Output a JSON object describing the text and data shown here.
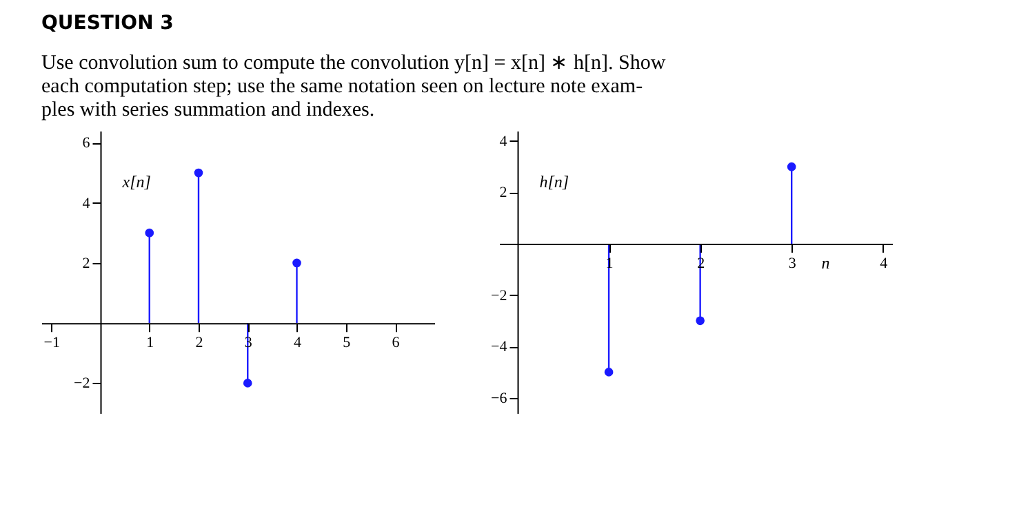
{
  "chart_data": [
    {
      "type": "lollipop",
      "title": "QUESTION 3",
      "subtitle": [
        "Use convolution sum to compute the convolution y[n] = x[n] ∗ h[n]. Show",
        "each computation step; use the same notation seen on lecture note exam-",
        "ples with series summation and indexes."
      ],
      "ylabel": "x[n]",
      "x": [
        1,
        2,
        3,
        4
      ],
      "values": [
        3,
        5,
        -2,
        2
      ],
      "color": "#1a1aff",
      "marker": "circle",
      "xlim": [
        -1.2,
        6.8
      ],
      "ylim": [
        -3,
        6.4
      ],
      "xticks": [
        -1,
        1,
        2,
        3,
        4,
        5,
        6
      ],
      "yticks": [
        -2,
        2,
        4,
        6
      ],
      "grid": false
    },
    {
      "type": "lollipop",
      "ylabel": "h[n]",
      "xlabel": "n",
      "x": [
        1,
        2,
        3
      ],
      "values": [
        -5,
        -3,
        3
      ],
      "color": "#1a1aff",
      "marker": "circle",
      "xlim": [
        -0.2,
        4.1
      ],
      "ylim": [
        -6.6,
        4.4
      ],
      "xticks": [
        1,
        2,
        3,
        4
      ],
      "yticks": [
        -6,
        -4,
        -2,
        2,
        4
      ],
      "grid": false
    }
  ]
}
